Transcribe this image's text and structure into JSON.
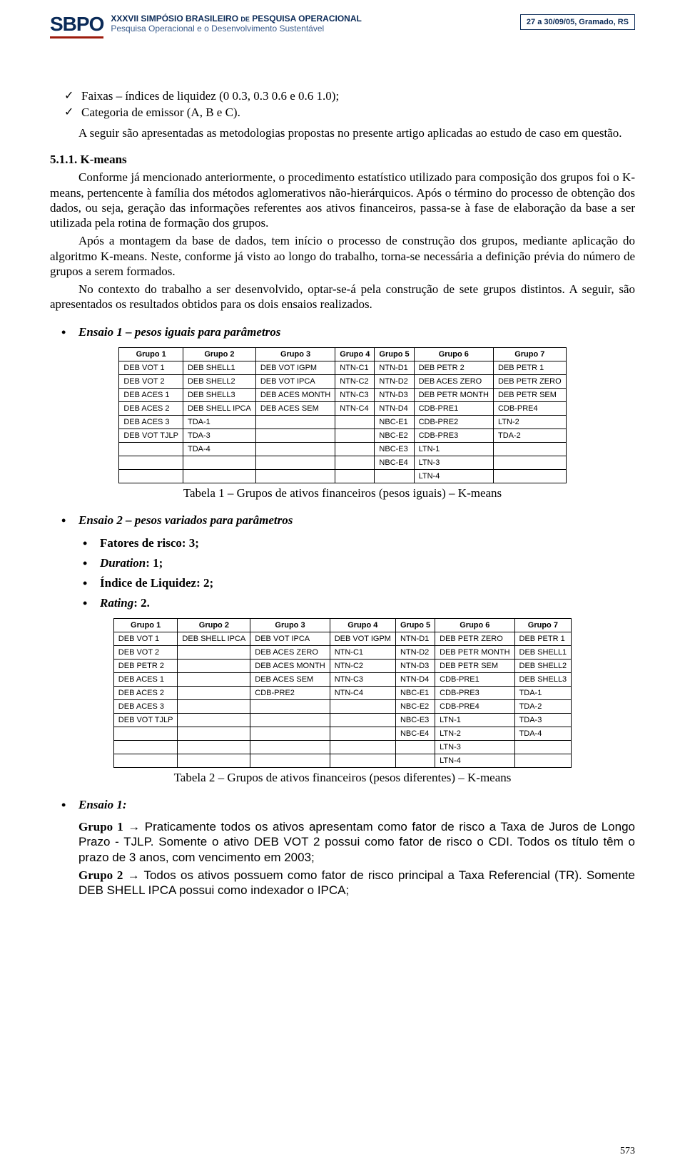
{
  "header": {
    "logo_text": "SBPO",
    "line1_a": "XXXVII SIMPÓSIO BRASILEIRO ",
    "line1_small": "DE",
    "line1_b": " PESQUISA OPERACIONAL",
    "line2": "Pesquisa Operacional e o Desenvolvimento Sustentável",
    "badge": "27 a 30/09/05, Gramado, RS"
  },
  "checks": {
    "c1": "Faixas – índices de liquidez (0  0.3, 0.3  0.6 e 0.6  1.0);",
    "c2": "Categoria de emissor (A, B e C)."
  },
  "intro": "A seguir são apresentadas as metodologias propostas no presente artigo aplicadas ao estudo de caso em questão.",
  "section": {
    "num": "5.1.1.",
    "title": "K-means"
  },
  "p1": "Conforme já mencionado anteriormente, o procedimento estatístico utilizado para composição dos grupos foi o K-means, pertencente à família dos métodos aglomerativos não-hierárquicos. Após o término do processo de obtenção dos dados, ou seja, geração das informações referentes aos ativos financeiros, passa-se à fase de elaboração da base a ser utilizada pela rotina de formação dos grupos.",
  "p2": "Após a montagem da base de dados, tem início o processo de construção dos grupos, mediante aplicação do algoritmo K-means. Neste, conforme já visto ao longo do trabalho, torna-se necessária a definição prévia do número de grupos a serem formados.",
  "p3": "No contexto do trabalho a ser desenvolvido, optar-se-á pela construção de sete grupos distintos. A seguir, são apresentados os resultados obtidos para os dois ensaios realizados.",
  "ensaio1_title": "Ensaio 1 – pesos iguais para parâmetros",
  "ensaio2_title": "Ensaio 2 – pesos variados para parâmetros",
  "factors": {
    "f1": "Fatores de risco: 3;",
    "f2_a": "Duration",
    "f2_b": ": 1;",
    "f3": "Índice de Liquidez: 2;",
    "f4_a": "Rating",
    "f4_b": ": 2."
  },
  "caption1": "Tabela 1 – Grupos de ativos financeiros (pesos iguais) – K-means",
  "caption2": "Tabela 2 – Grupos de ativos financeiros (pesos diferentes) – K-means",
  "ensaio1_label": "Ensaio 1:",
  "grp1_label": "Grupo 1",
  "grp1_text": " → Praticamente todos os ativos apresentam como fator de risco a Taxa de Juros de Longo Prazo - TJLP. Somente o ativo DEB VOT 2 possui como fator de risco o CDI. Todos os título têm o prazo de 3 anos, com vencimento em 2003;",
  "grp2_label": "Grupo 2",
  "grp2_text": " → Todos os ativos possuem como fator de risco principal a Taxa Referencial (TR). Somente DEB SHELL IPCA possui como indexador o IPCA;",
  "page_number": "573",
  "table1": {
    "headers": [
      "Grupo 1",
      "Grupo 2",
      "Grupo 3",
      "Grupo 4",
      "Grupo 5",
      "Grupo 6",
      "Grupo 7"
    ],
    "rows": [
      [
        "DEB VOT 1",
        "DEB SHELL1",
        "DEB VOT IGPM",
        "NTN-C1",
        "NTN-D1",
        "DEB PETR 2",
        "DEB PETR 1"
      ],
      [
        "DEB VOT 2",
        "DEB SHELL2",
        "DEB VOT IPCA",
        "NTN-C2",
        "NTN-D2",
        "DEB ACES ZERO",
        "DEB PETR ZERO"
      ],
      [
        "DEB ACES 1",
        "DEB SHELL3",
        "DEB ACES MONTH",
        "NTN-C3",
        "NTN-D3",
        "DEB PETR MONTH",
        "DEB PETR SEM"
      ],
      [
        "DEB ACES 2",
        "DEB SHELL IPCA",
        "DEB ACES SEM",
        "NTN-C4",
        "NTN-D4",
        "CDB-PRE1",
        "CDB-PRE4"
      ],
      [
        "DEB ACES 3",
        "TDA-1",
        "",
        "",
        "NBC-E1",
        "CDB-PRE2",
        "LTN-2"
      ],
      [
        "DEB VOT TJLP",
        "TDA-3",
        "",
        "",
        "NBC-E2",
        "CDB-PRE3",
        "TDA-2"
      ],
      [
        "",
        "TDA-4",
        "",
        "",
        "NBC-E3",
        "LTN-1",
        ""
      ],
      [
        "",
        "",
        "",
        "",
        "NBC-E4",
        "LTN-3",
        ""
      ],
      [
        "",
        "",
        "",
        "",
        "",
        "LTN-4",
        ""
      ]
    ]
  },
  "table2": {
    "headers": [
      "Grupo 1",
      "Grupo 2",
      "Grupo 3",
      "Grupo 4",
      "Grupo 5",
      "Grupo 6",
      "Grupo 7"
    ],
    "rows": [
      [
        "DEB VOT 1",
        "DEB SHELL IPCA",
        "DEB VOT IPCA",
        "DEB VOT IGPM",
        "NTN-D1",
        "DEB PETR ZERO",
        "DEB PETR 1"
      ],
      [
        "DEB VOT 2",
        "",
        "DEB ACES ZERO",
        "NTN-C1",
        "NTN-D2",
        "DEB PETR MONTH",
        "DEB SHELL1"
      ],
      [
        "DEB PETR 2",
        "",
        "DEB ACES MONTH",
        "NTN-C2",
        "NTN-D3",
        "DEB PETR SEM",
        "DEB SHELL2"
      ],
      [
        "DEB ACES 1",
        "",
        "DEB ACES SEM",
        "NTN-C3",
        "NTN-D4",
        "CDB-PRE1",
        "DEB SHELL3"
      ],
      [
        "DEB ACES 2",
        "",
        "CDB-PRE2",
        "NTN-C4",
        "NBC-E1",
        "CDB-PRE3",
        "TDA-1"
      ],
      [
        "DEB ACES 3",
        "",
        "",
        "",
        "NBC-E2",
        "CDB-PRE4",
        "TDA-2"
      ],
      [
        "DEB VOT TJLP",
        "",
        "",
        "",
        "NBC-E3",
        "LTN-1",
        "TDA-3"
      ],
      [
        "",
        "",
        "",
        "",
        "NBC-E4",
        "LTN-2",
        "TDA-4"
      ],
      [
        "",
        "",
        "",
        "",
        "",
        "LTN-3",
        ""
      ],
      [
        "",
        "",
        "",
        "",
        "",
        "LTN-4",
        ""
      ]
    ]
  },
  "colors": {
    "brand_dark": "#0a2a57",
    "brand_accent": "#9d1b0c",
    "brand_light": "#3a5c8c",
    "text": "#000000",
    "background": "#ffffff"
  },
  "typography": {
    "body_family": "Times New Roman",
    "body_size_pt": 12,
    "header_family": "Arial",
    "table_family": "Arial",
    "table_size_pt": 8
  }
}
